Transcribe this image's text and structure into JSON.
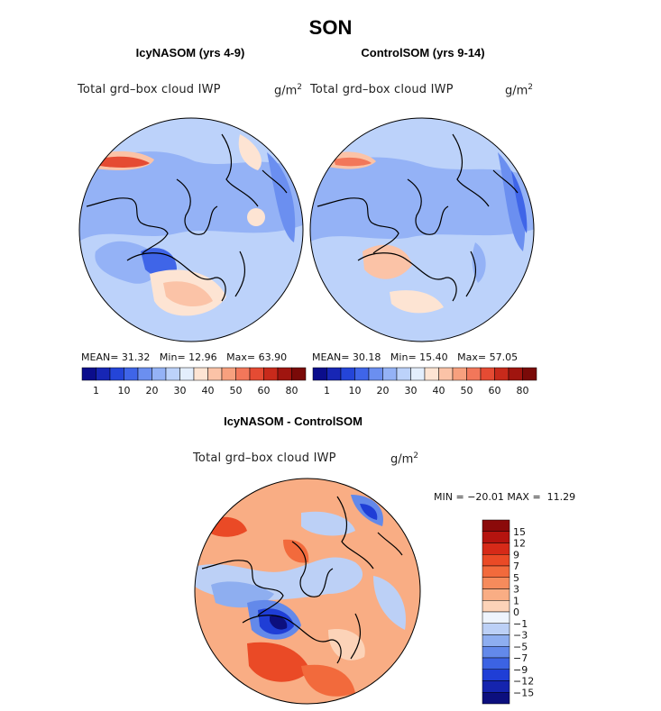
{
  "chart_data": [
    {
      "type": "heatmap",
      "title": "SON",
      "subtitle": "IcyNASOM (yrs 4-9)",
      "variable": "Total grd–box cloud IWP",
      "units": "g/m",
      "units_sup": "2",
      "stats": {
        "mean_label": "MEAN=",
        "mean": "31.32",
        "min_label": "Min=",
        "min": "12.96",
        "max_label": "Max=",
        "max": "63.90"
      },
      "colorbar_ticks": [
        "1",
        "10",
        "20",
        "30",
        "40",
        "50",
        "60",
        "80"
      ],
      "colors": [
        "#0b0d8c",
        "#1726b5",
        "#2445d8",
        "#3f65e8",
        "#6b8ff0",
        "#94b2f6",
        "#bcd2fa",
        "#e3eefc",
        "#fde4d3",
        "#fbc3a7",
        "#f7a07e",
        "#f2775a",
        "#e54b33",
        "#c82a1b",
        "#a0150f",
        "#7a0a08"
      ]
    },
    {
      "type": "heatmap",
      "title": "SON",
      "subtitle": "ControlSOM (yrs 9-14)",
      "variable": "Total grd–box cloud IWP",
      "units": "g/m",
      "units_sup": "2",
      "stats": {
        "mean_label": "MEAN=",
        "mean": "30.18",
        "min_label": "Min=",
        "min": "15.40",
        "max_label": "Max=",
        "max": "57.05"
      },
      "colorbar_ticks": [
        "1",
        "10",
        "20",
        "30",
        "40",
        "50",
        "60",
        "80"
      ],
      "colors": [
        "#0b0d8c",
        "#1726b5",
        "#2445d8",
        "#3f65e8",
        "#6b8ff0",
        "#94b2f6",
        "#bcd2fa",
        "#e3eefc",
        "#fde4d3",
        "#fbc3a7",
        "#f7a07e",
        "#f2775a",
        "#e54b33",
        "#c82a1b",
        "#a0150f",
        "#7a0a08"
      ]
    },
    {
      "type": "heatmap",
      "title": "SON",
      "subtitle": "IcyNASOM - ControlSOM",
      "variable": "Total grd–box cloud IWP",
      "units": "g/m",
      "units_sup": "2",
      "stats": {
        "min_label": "MIN =",
        "min": "−20.01",
        "max_label": "MAX =",
        "max": "11.29"
      },
      "colorbar_ticks": [
        "15",
        "12",
        "9",
        "7",
        "5",
        "3",
        "1",
        "0",
        "−1",
        "−3",
        "−5",
        "−7",
        "−9",
        "−12",
        "−15"
      ],
      "colors": [
        "#8b0a0a",
        "#b5140f",
        "#d62a18",
        "#ea4a26",
        "#f26a3c",
        "#f68b5c",
        "#f9ad84",
        "#fcd3b8",
        "#eef4fd",
        "#bcd0f6",
        "#8eaef0",
        "#6389ea",
        "#3c63e3",
        "#1f3ed6",
        "#1524ae",
        "#0c0f7e"
      ]
    }
  ]
}
